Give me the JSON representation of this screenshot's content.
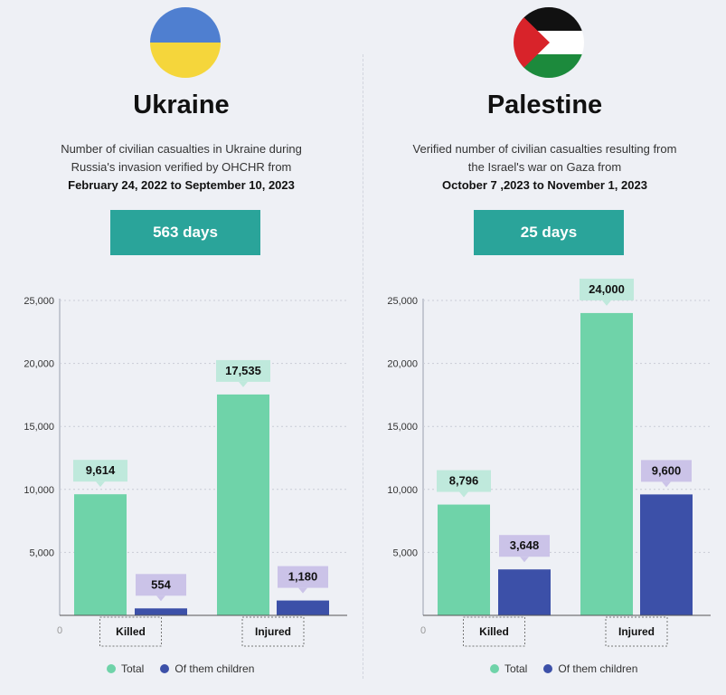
{
  "colors": {
    "total": "#6fd3a9",
    "children": "#3c50a8",
    "total_label_bg": "#bfe9dc",
    "children_label_bg": "#cbc3e8",
    "days_bg": "#2aa49a"
  },
  "legend": {
    "total": "Total",
    "children": "Of them children"
  },
  "panels": [
    {
      "country": "Ukraine",
      "flag_icon": "ukraine-flag-icon",
      "desc_line1": "Number of civilian casualties in Ukraine during",
      "desc_line2": "Russia's invasion verified by OHCHR from",
      "desc_line3": "February 24, 2022 to September 10, 2023",
      "days": "563 days"
    },
    {
      "country": "Palestine",
      "flag_icon": "palestine-flag-icon",
      "desc_line1": "Verified number of civilian casualties resulting from",
      "desc_line2": "the Israel's war on Gaza from",
      "desc_line3": "October 7 ,2023 to November 1, 2023",
      "days": "25 days"
    }
  ],
  "chart_data": [
    {
      "type": "bar",
      "categories": [
        "Killed",
        "Injured"
      ],
      "series": [
        {
          "name": "Total",
          "values": [
            9614,
            17535
          ]
        },
        {
          "name": "Of them children",
          "values": [
            554,
            1180
          ]
        }
      ],
      "data_labels": [
        [
          "9,614",
          "554"
        ],
        [
          "17,535",
          "1,180"
        ]
      ],
      "yticks": [
        5000,
        10000,
        15000,
        20000,
        25000
      ],
      "ytick_labels": [
        "5,000",
        "10,000",
        "15,000",
        "20,000",
        "25,000"
      ],
      "origin_label": "0",
      "ylim": [
        0,
        25000
      ]
    },
    {
      "type": "bar",
      "categories": [
        "Killed",
        "Injured"
      ],
      "series": [
        {
          "name": "Total",
          "values": [
            8796,
            24000
          ]
        },
        {
          "name": "Of them children",
          "values": [
            3648,
            9600
          ]
        }
      ],
      "data_labels": [
        [
          "8,796",
          "3,648"
        ],
        [
          "24,000",
          "9,600"
        ]
      ],
      "yticks": [
        5000,
        10000,
        15000,
        20000,
        25000
      ],
      "ytick_labels": [
        "5,000",
        "10,000",
        "15,000",
        "20,000",
        "25,000"
      ],
      "origin_label": "0",
      "ylim": [
        0,
        25000
      ]
    }
  ]
}
